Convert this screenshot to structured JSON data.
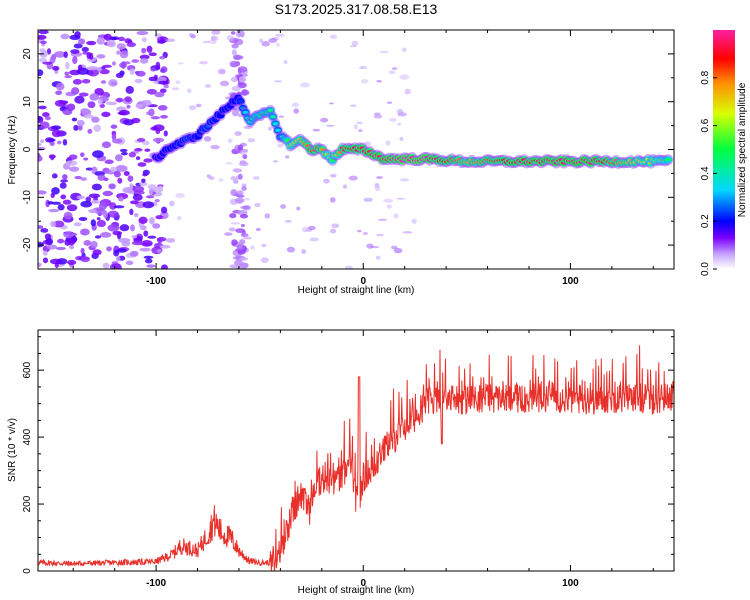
{
  "title": "S173.2025.317.08.58.E13",
  "colorbar": {
    "label": "Normalized spectral amplitude",
    "ticks": [
      0.0,
      0.2,
      0.4,
      0.6,
      0.8
    ],
    "tick_labels": [
      "0.0",
      "0.2",
      "0.4",
      "0.6",
      "0.8"
    ],
    "range": [
      0,
      1
    ]
  },
  "chart_data": [
    {
      "type": "heatmap",
      "title": "S173.2025.317.08.58.E13",
      "xlabel": "Height of straight line (km)",
      "ylabel": "Frequency (Hz)",
      "xlim": [
        -157,
        150
      ],
      "ylim": [
        -25,
        25
      ],
      "x_ticks": [
        -100,
        0,
        100
      ],
      "x_tick_labels": [
        "-100",
        "0",
        "100"
      ],
      "y_ticks": [
        -20,
        -10,
        0,
        10,
        20
      ],
      "y_tick_labels": [
        "-20",
        "-10",
        "0",
        "10",
        "20"
      ],
      "ridge": {
        "x": [
          -100,
          -95,
          -90,
          -85,
          -80,
          -75,
          -70,
          -65,
          -60,
          -55,
          -50,
          -45,
          -40,
          -35,
          -30,
          -25,
          -20,
          -15,
          -10,
          -5,
          0,
          5,
          10,
          20,
          30,
          50,
          70,
          90,
          110,
          130,
          148
        ],
        "freq": [
          -2,
          0,
          1,
          2,
          3,
          5,
          7,
          9,
          11,
          6,
          7,
          8,
          3,
          1,
          2,
          0,
          0,
          -2,
          0,
          0,
          0,
          -1,
          -2,
          -2,
          -2,
          -2.5,
          -2.5,
          -2.5,
          -2.5,
          -2.5,
          -2.5
        ],
        "amplitude": [
          0.15,
          0.2,
          0.2,
          0.25,
          0.2,
          0.25,
          0.2,
          0.2,
          0.2,
          0.4,
          0.45,
          0.45,
          0.3,
          0.6,
          0.7,
          0.85,
          0.8,
          0.5,
          0.85,
          0.9,
          0.9,
          0.95,
          0.95,
          1.0,
          1.0,
          0.75,
          0.9,
          0.95,
          0.95,
          0.7,
          0.5
        ]
      }
    },
    {
      "type": "line",
      "xlabel": "Height of straight line (km)",
      "ylabel": "SNR (10 * v/v)",
      "xlim": [
        -157,
        150
      ],
      "ylim": [
        0,
        720
      ],
      "x_ticks": [
        -100,
        0,
        100
      ],
      "x_tick_labels": [
        "-100",
        "0",
        "100"
      ],
      "y_ticks": [
        0,
        200,
        400,
        600
      ],
      "y_tick_labels": [
        "0",
        "200",
        "400",
        "600"
      ],
      "series": [
        {
          "name": "SNR",
          "color": "#e8302a",
          "x": [
            -157,
            -140,
            -120,
            -100,
            -92,
            -88,
            -84,
            -80,
            -76,
            -72,
            -68,
            -64,
            -60,
            -55,
            -50,
            -45,
            -42,
            -38,
            -34,
            -30,
            -26,
            -22,
            -18,
            -14,
            -10,
            -6,
            -4,
            -2,
            0,
            4,
            8,
            12,
            16,
            20,
            25,
            30,
            40,
            50,
            60,
            70,
            80,
            90,
            100,
            110,
            120,
            130,
            140,
            150
          ],
          "values": [
            25,
            22,
            25,
            28,
            50,
            75,
            70,
            60,
            100,
            150,
            110,
            100,
            60,
            30,
            25,
            25,
            50,
            120,
            200,
            250,
            200,
            280,
            300,
            280,
            300,
            350,
            250,
            200,
            300,
            320,
            360,
            400,
            420,
            450,
            480,
            520,
            540,
            530,
            540,
            530,
            535,
            540,
            535,
            530,
            535,
            540,
            530,
            545
          ]
        }
      ]
    }
  ]
}
